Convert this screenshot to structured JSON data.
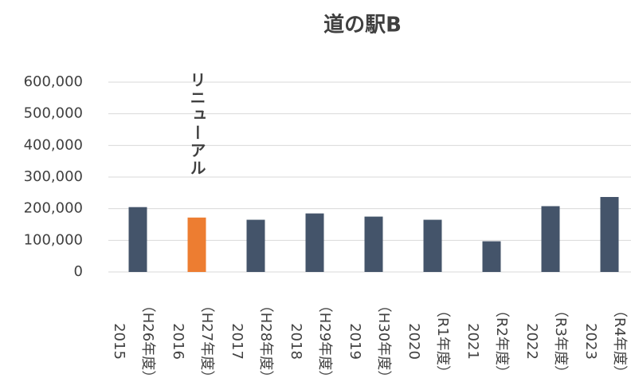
{
  "chart_data": {
    "type": "bar",
    "title": "道の駅B",
    "categories": [
      [
        "2015",
        "（H26年度）"
      ],
      [
        "2016",
        "（H27年度）"
      ],
      [
        "2017",
        "（H28年度）"
      ],
      [
        "2018",
        "（H29年度）"
      ],
      [
        "2019",
        "（H30年度）"
      ],
      [
        "2020",
        "（R1年度）"
      ],
      [
        "2021",
        "（R2年度）"
      ],
      [
        "2022",
        "（R3年度）"
      ],
      [
        "2023",
        "（R4年度）"
      ]
    ],
    "values": [
      205000,
      172000,
      165000,
      185000,
      175000,
      165000,
      97000,
      208000,
      237000
    ],
    "colors": [
      "#44546a",
      "#ed7d31",
      "#44546a",
      "#44546a",
      "#44546a",
      "#44546a",
      "#44546a",
      "#44546a",
      "#44546a"
    ],
    "annotation": {
      "text": "リニューアル",
      "category": 1,
      "color": "#ed7d31"
    },
    "ylim": [
      0,
      600000
    ],
    "yticks": [
      0,
      {
        "value": 100000,
        "label": "100,000"
      },
      {
        "value": 200000,
        "label": "200,000"
      },
      {
        "value": 300000,
        "label": "300,000"
      },
      {
        "value": 400000,
        "label": "400,000"
      },
      {
        "value": 500000,
        "label": "500,000"
      },
      {
        "value": 600000,
        "label": "600,000"
      }
    ],
    "grid": true
  }
}
